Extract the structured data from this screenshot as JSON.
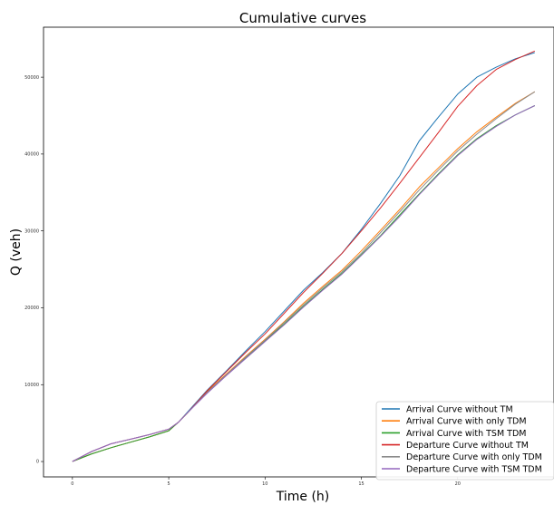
{
  "chart_data": {
    "type": "line",
    "title": "Cumulative curves",
    "xlabel": "Time (h)",
    "ylabel": "Q (veh)",
    "xlim": [
      -1.5,
      25
    ],
    "ylim": [
      -2000,
      56500
    ],
    "x_ticks": [
      0,
      5,
      10,
      15,
      20
    ],
    "x_tick_labels": [
      "0",
      "5",
      "10",
      "15",
      "20"
    ],
    "y_ticks": [
      0,
      10000,
      20000,
      30000,
      40000,
      50000
    ],
    "y_tick_labels": [
      "0",
      "10000",
      "20000",
      "30000",
      "40000",
      "50000"
    ],
    "grid": false,
    "legend_position": "lower-right",
    "x": [
      0,
      1,
      2,
      3,
      4,
      5,
      5.5,
      6,
      7,
      8,
      9,
      10,
      11,
      12,
      13,
      14,
      15,
      16,
      17,
      18,
      19,
      20,
      21,
      22,
      23,
      24
    ],
    "series": [
      {
        "name": "Arrival Curve without TM",
        "color": "#1f77b4",
        "values": [
          0,
          1000,
          1800,
          2500,
          3200,
          4000,
          5100,
          6500,
          9300,
          11800,
          14400,
          16900,
          19600,
          22300,
          24600,
          27100,
          30200,
          33600,
          37200,
          41700,
          44800,
          47800,
          50000,
          51300,
          52400,
          53200
        ]
      },
      {
        "name": "Arrival Curve with only TDM",
        "color": "#ff7f0e",
        "values": [
          0,
          1000,
          1800,
          2500,
          3200,
          4000,
          5100,
          6400,
          9100,
          11400,
          13700,
          15900,
          18200,
          20600,
          22800,
          24900,
          27400,
          30100,
          32800,
          35700,
          38200,
          40700,
          42900,
          44800,
          46600,
          48100
        ]
      },
      {
        "name": "Arrival Curve with TSM TDM",
        "color": "#2ca02c",
        "values": [
          0,
          1000,
          1800,
          2500,
          3200,
          4000,
          5100,
          6400,
          9000,
          11300,
          13500,
          15700,
          17900,
          20200,
          22400,
          24500,
          26900,
          29400,
          32100,
          34800,
          37400,
          39900,
          42000,
          43700,
          45100,
          46300
        ]
      },
      {
        "name": "Departure Curve without TM",
        "color": "#d62728",
        "values": [
          0,
          1300,
          2300,
          2900,
          3500,
          4200,
          5100,
          6400,
          9200,
          11700,
          14200,
          16600,
          19300,
          22000,
          24500,
          27100,
          30000,
          33000,
          36200,
          39500,
          42800,
          46200,
          48900,
          51000,
          52300,
          53400
        ]
      },
      {
        "name": "Departure Curve with only TDM",
        "color": "#8c8c8c",
        "values": [
          0,
          1300,
          2300,
          2900,
          3500,
          4200,
          5100,
          6400,
          9000,
          11300,
          13600,
          15800,
          18100,
          20400,
          22600,
          24700,
          27100,
          29800,
          32500,
          35300,
          37900,
          40400,
          42600,
          44600,
          46500,
          48100
        ]
      },
      {
        "name": "Departure Curve with TSM TDM",
        "color": "#9467bd",
        "values": [
          0,
          1300,
          2300,
          2900,
          3500,
          4200,
          5100,
          6400,
          8900,
          11200,
          13400,
          15600,
          17800,
          20100,
          22300,
          24400,
          26800,
          29300,
          31900,
          34700,
          37300,
          39800,
          41900,
          43600,
          45100,
          46300
        ]
      }
    ]
  }
}
